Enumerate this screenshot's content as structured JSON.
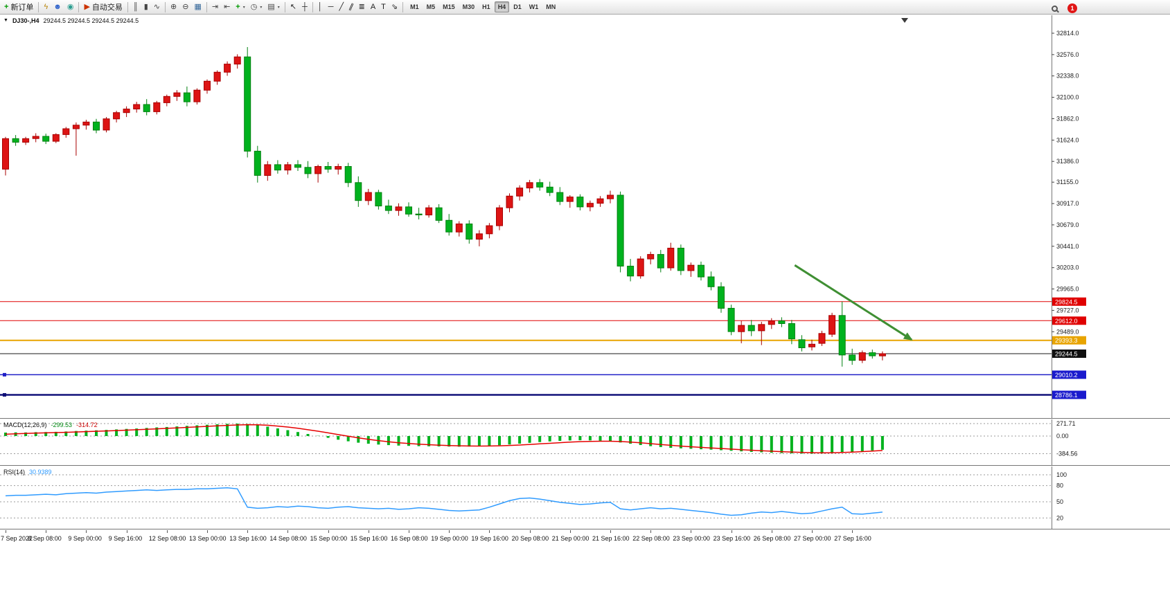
{
  "header": {
    "symbol": "DJ30-,H4",
    "ohlc": "29244.5 29244.5 29244.5 29244.5"
  },
  "toolbar": {
    "items": [
      {
        "t": "labelbtn",
        "name": "new-order-button",
        "icon": "new-order-icon",
        "glyph": "+",
        "color": "#009a00",
        "bold": true,
        "label": "新订单"
      },
      {
        "t": "sep"
      },
      {
        "t": "icon",
        "name": "quotes-button",
        "icon": "lightning-icon",
        "glyph": "ϟ",
        "color": "#b8860b"
      },
      {
        "t": "icon",
        "name": "profile-button",
        "icon": "profile-icon",
        "glyph": "☻",
        "color": "#3366cc"
      },
      {
        "t": "icon",
        "name": "community-button",
        "icon": "community-icon",
        "glyph": "◉",
        "color": "#2a9d8f"
      },
      {
        "t": "sep"
      },
      {
        "t": "labelbtn",
        "name": "autotrading-button",
        "icon": "autotrading-icon",
        "glyph": "▶",
        "color": "#cc3300",
        "label": "自动交易"
      },
      {
        "t": "sep"
      },
      {
        "t": "icon",
        "name": "bar-chart-button",
        "icon": "bar-chart-icon",
        "glyph": "║",
        "color": "#444444"
      },
      {
        "t": "icon",
        "name": "candlestick-chart-button",
        "icon": "candlestick-chart-icon",
        "glyph": "▮",
        "color": "#444444"
      },
      {
        "t": "icon",
        "name": "line-chart-button",
        "icon": "line-chart-icon",
        "glyph": "∿",
        "color": "#444444"
      },
      {
        "t": "sep"
      },
      {
        "t": "icon",
        "name": "zoom-in-button",
        "icon": "zoom-in-icon",
        "glyph": "⊕",
        "color": "#444444"
      },
      {
        "t": "icon",
        "name": "zoom-out-button",
        "icon": "zoom-out-icon",
        "glyph": "⊖",
        "color": "#444444"
      },
      {
        "t": "icon",
        "name": "tile-windows-button",
        "icon": "tile-windows-icon",
        "glyph": "▦",
        "color": "#336699"
      },
      {
        "t": "sep"
      },
      {
        "t": "icon",
        "name": "auto-scroll-button",
        "icon": "auto-scroll-icon",
        "glyph": "⇥",
        "color": "#444444"
      },
      {
        "t": "icon",
        "name": "chart-shift-button",
        "icon": "chart-shift-icon",
        "glyph": "⇤",
        "color": "#444444"
      },
      {
        "t": "icon",
        "name": "indicators-button",
        "icon": "indicators-icon",
        "glyph": "+",
        "color": "#009a00",
        "bold": true,
        "caret": true
      },
      {
        "t": "icon",
        "name": "periods-button",
        "icon": "clock-icon",
        "glyph": "◷",
        "color": "#444444",
        "caret": true
      },
      {
        "t": "icon",
        "name": "templates-button",
        "icon": "template-icon",
        "glyph": "▤",
        "color": "#444444",
        "caret": true
      },
      {
        "t": "sep"
      },
      {
        "t": "icon",
        "name": "cursor-button",
        "icon": "cursor-icon",
        "glyph": "↖",
        "color": "#222222"
      },
      {
        "t": "icon",
        "name": "crosshair-button",
        "icon": "crosshair-icon",
        "glyph": "┼",
        "color": "#222222"
      },
      {
        "t": "sep"
      },
      {
        "t": "icon",
        "name": "vertical-line-button",
        "icon": "vertical-line-icon",
        "glyph": "│",
        "color": "#222222"
      },
      {
        "t": "icon",
        "name": "horizontal-line-button",
        "icon": "horizontal-line-icon",
        "glyph": "─",
        "color": "#222222"
      },
      {
        "t": "icon",
        "name": "trendline-button",
        "icon": "trendline-icon",
        "glyph": "╱",
        "color": "#222222"
      },
      {
        "t": "icon",
        "name": "equidistant-channel-button",
        "icon": "equidistant-channel-icon",
        "glyph": "∥",
        "color": "#222222",
        "rotate": true
      },
      {
        "t": "icon",
        "name": "fibonacci-button",
        "icon": "fibonacci-icon",
        "glyph": "≣",
        "color": "#222222"
      },
      {
        "t": "icon",
        "name": "text-button",
        "icon": "text-icon",
        "glyph": "A",
        "color": "#222222"
      },
      {
        "t": "icon",
        "name": "text-label-button",
        "icon": "text-label-icon",
        "glyph": "T",
        "color": "#222222"
      },
      {
        "t": "icon",
        "name": "arrows-button",
        "icon": "arrows-icon",
        "glyph": "⇘",
        "color": "#222222"
      },
      {
        "t": "sep"
      },
      {
        "t": "tf"
      }
    ],
    "timeframes": [
      "M1",
      "M5",
      "M15",
      "M30",
      "H1",
      "H4",
      "D1",
      "W1",
      "MN"
    ],
    "active_timeframe": "H4",
    "notification_count": "1"
  },
  "colors": {
    "bull_candle": "#dd1414",
    "bull_border": "#a80000",
    "bear_candle": "#00b21e",
    "bear_border": "#00800f",
    "macd_histogram": "#00b21e",
    "macd_signal": "#e60000",
    "rsi_line": "#2f9bff",
    "arrow": "#3f8f33",
    "axis_text": "#1a1a1a",
    "panel_border": "#767676"
  },
  "chart_data": [
    {
      "type": "candlestick",
      "symbol": "DJ30-",
      "timeframe": "H4",
      "y_axis_ticks": [
        "32814.0",
        "32576.0",
        "32338.0",
        "32100.0",
        "31862.0",
        "31624.0",
        "31386.0",
        "31155.0",
        "30917.0",
        "30679.0",
        "30441.0",
        "30203.0",
        "29965.0",
        "29727.0",
        "29489.0"
      ],
      "current_price": 29244.5,
      "candles": [
        [
          31300,
          31660,
          31230,
          31640
        ],
        [
          31640,
          31680,
          31560,
          31600
        ],
        [
          31600,
          31660,
          31570,
          31640
        ],
        [
          31640,
          31700,
          31600,
          31665
        ],
        [
          31665,
          31695,
          31580,
          31610
        ],
        [
          31610,
          31700,
          31590,
          31685
        ],
        [
          31685,
          31770,
          31650,
          31750
        ],
        [
          31750,
          31820,
          31450,
          31790
        ],
        [
          31790,
          31850,
          31740,
          31825
        ],
        [
          31825,
          31860,
          31700,
          31735
        ],
        [
          31735,
          31880,
          31710,
          31860
        ],
        [
          31860,
          31950,
          31820,
          31930
        ],
        [
          31930,
          32000,
          31880,
          31970
        ],
        [
          31970,
          32050,
          31930,
          32020
        ],
        [
          32020,
          32080,
          31900,
          31940
        ],
        [
          31940,
          32060,
          31910,
          32040
        ],
        [
          32040,
          32130,
          32000,
          32110
        ],
        [
          32110,
          32180,
          32060,
          32150
        ],
        [
          32150,
          32220,
          32000,
          32050
        ],
        [
          32050,
          32200,
          32020,
          32180
        ],
        [
          32180,
          32300,
          32140,
          32280
        ],
        [
          32280,
          32400,
          32240,
          32380
        ],
        [
          32380,
          32500,
          32340,
          32470
        ],
        [
          32470,
          32580,
          32420,
          32550
        ],
        [
          32550,
          32660,
          31430,
          31500
        ],
        [
          31500,
          31560,
          31150,
          31230
        ],
        [
          31230,
          31390,
          31170,
          31350
        ],
        [
          31350,
          31400,
          31250,
          31290
        ],
        [
          31290,
          31380,
          31240,
          31350
        ],
        [
          31350,
          31400,
          31280,
          31320
        ],
        [
          31320,
          31390,
          31200,
          31250
        ],
        [
          31250,
          31350,
          31150,
          31330
        ],
        [
          31330,
          31380,
          31260,
          31300
        ],
        [
          31300,
          31360,
          31240,
          31330
        ],
        [
          31330,
          31370,
          31100,
          31150
        ],
        [
          31150,
          31220,
          30880,
          30950
        ],
        [
          30950,
          31080,
          30900,
          31040
        ],
        [
          31040,
          31070,
          30850,
          30890
        ],
        [
          30890,
          30960,
          30800,
          30840
        ],
        [
          30840,
          30920,
          30780,
          30880
        ],
        [
          30880,
          30930,
          30770,
          30800
        ],
        [
          30800,
          30870,
          30740,
          30790
        ],
        [
          30790,
          30900,
          30760,
          30870
        ],
        [
          30870,
          30910,
          30700,
          30730
        ],
        [
          30730,
          30800,
          30560,
          30600
        ],
        [
          30600,
          30720,
          30550,
          30690
        ],
        [
          30690,
          30730,
          30470,
          30520
        ],
        [
          30520,
          30620,
          30440,
          30580
        ],
        [
          30580,
          30700,
          30530,
          30670
        ],
        [
          30670,
          30900,
          30620,
          30870
        ],
        [
          30870,
          31030,
          30820,
          31000
        ],
        [
          31000,
          31120,
          30950,
          31090
        ],
        [
          31090,
          31180,
          31040,
          31150
        ],
        [
          31150,
          31190,
          31060,
          31100
        ],
        [
          31100,
          31160,
          31000,
          31040
        ],
        [
          31040,
          31100,
          30900,
          30940
        ],
        [
          30940,
          31010,
          30870,
          30990
        ],
        [
          30990,
          31020,
          30840,
          30880
        ],
        [
          30880,
          30950,
          30830,
          30920
        ],
        [
          30920,
          31000,
          30880,
          30970
        ],
        [
          30970,
          31060,
          30920,
          31010
        ],
        [
          31010,
          31050,
          30150,
          30220
        ],
        [
          30220,
          30300,
          30050,
          30110
        ],
        [
          30110,
          30330,
          30080,
          30300
        ],
        [
          30300,
          30380,
          30240,
          30350
        ],
        [
          30350,
          30400,
          30150,
          30200
        ],
        [
          30200,
          30480,
          30170,
          30420
        ],
        [
          30420,
          30460,
          30120,
          30170
        ],
        [
          30170,
          30260,
          30100,
          30230
        ],
        [
          30230,
          30270,
          30060,
          30100
        ],
        [
          30100,
          30160,
          29950,
          29990
        ],
        [
          29990,
          30040,
          29700,
          29750
        ],
        [
          29750,
          29790,
          29450,
          29490
        ],
        [
          29490,
          29610,
          29360,
          29560
        ],
        [
          29560,
          29620,
          29440,
          29500
        ],
        [
          29500,
          29600,
          29340,
          29570
        ],
        [
          29570,
          29640,
          29520,
          29610
        ],
        [
          29610,
          29650,
          29540,
          29580
        ],
        [
          29580,
          29620,
          29350,
          29410
        ],
        [
          29400,
          29450,
          29270,
          29310
        ],
        [
          29320,
          29400,
          29280,
          29350
        ],
        [
          29360,
          29500,
          29330,
          29470
        ],
        [
          29460,
          29700,
          29430,
          29670
        ],
        [
          29670,
          29825,
          29100,
          29230
        ],
        [
          29230,
          29300,
          29120,
          29170
        ],
        [
          29170,
          29280,
          29140,
          29255
        ],
        [
          29255,
          29290,
          29190,
          29220
        ],
        [
          29220,
          29270,
          29170,
          29244.5
        ]
      ],
      "hlines": [
        {
          "price": 29824.5,
          "color": "#e00000",
          "width": 1
        },
        {
          "price": 29612.0,
          "color": "#e00000",
          "width": 1
        },
        {
          "price": 29393.3,
          "color": "#e8a400",
          "width": 2
        },
        {
          "price": 29244.5,
          "color": "#1a1a1a",
          "width": 1
        },
        {
          "price": 29010.2,
          "color": "#2020c8",
          "width": 1.5,
          "handles": true
        },
        {
          "price": 28786.1,
          "color": "#101078",
          "width": 2.5,
          "handles": true
        }
      ],
      "badges": [
        {
          "price": 29824.5,
          "text": "29824.5",
          "color": "#e00000"
        },
        {
          "price": 29612.0,
          "text": "29612.0",
          "color": "#e00000"
        },
        {
          "price": 29393.3,
          "text": "29393.3",
          "color": "#e8a400"
        },
        {
          "price": 29244.5,
          "text": "29244.5",
          "color": "#101010"
        },
        {
          "price": 29010.2,
          "text": "29010.2",
          "color": "#1a1acd"
        },
        {
          "price": 28786.1,
          "text": "28786.1",
          "color": "#1a1acd"
        }
      ],
      "trend_arrow": {
        "from_bar": 78.3,
        "from_price": 30230,
        "to_bar": 89.9,
        "to_price": 29400
      }
    },
    {
      "type": "bar",
      "title": "MACD(12,26,9)",
      "value_main": "-299.53",
      "value_signal": "-314.72",
      "levels": [
        {
          "value": 271.71,
          "label": "271.71"
        },
        {
          "value": 0,
          "label": "0.00"
        },
        {
          "value": -384.56,
          "label": "-384.56"
        }
      ],
      "bars": [
        75,
        80,
        78,
        85,
        88,
        92,
        100,
        110,
        118,
        126,
        135,
        145,
        155,
        165,
        176,
        188,
        198,
        210,
        222,
        234,
        246,
        256,
        265,
        271.71,
        262,
        238,
        205,
        168,
        128,
        88,
        45,
        5,
        -40,
        -80,
        -115,
        -145,
        -168,
        -185,
        -198,
        -208,
        -215,
        -220,
        -224,
        -227,
        -230,
        -232,
        -230,
        -224,
        -214,
        -200,
        -184,
        -166,
        -148,
        -132,
        -118,
        -106,
        -97,
        -92,
        -95,
        -103,
        -116,
        -140,
        -168,
        -196,
        -220,
        -240,
        -256,
        -268,
        -278,
        -288,
        -298,
        -310,
        -322,
        -334,
        -345,
        -355,
        -364,
        -371,
        -377,
        -382,
        -384.56,
        -381,
        -373,
        -362,
        -348,
        -332,
        -315,
        -299.53
      ],
      "signal": [
        40,
        50,
        57,
        64,
        70,
        76,
        82,
        89,
        96,
        104,
        112,
        120,
        129,
        138,
        147,
        157,
        167,
        178,
        189,
        200,
        211,
        222,
        233,
        242,
        247,
        245,
        235,
        218,
        196,
        169,
        138,
        105,
        69,
        32,
        -5,
        -40,
        -72,
        -100,
        -125,
        -146,
        -163,
        -177,
        -189,
        -199,
        -207,
        -213,
        -217,
        -219,
        -218,
        -213,
        -206,
        -196,
        -184,
        -171,
        -158,
        -145,
        -133,
        -123,
        -116,
        -113,
        -113,
        -120,
        -132,
        -148,
        -166,
        -184,
        -202,
        -219,
        -234,
        -247,
        -260,
        -272,
        -285,
        -297,
        -309,
        -320,
        -331,
        -341,
        -348,
        -356,
        -362,
        -365,
        -364,
        -359,
        -350,
        -339,
        -327,
        -314.72
      ]
    },
    {
      "type": "line",
      "title": "RSI(14)",
      "value": "30.9389",
      "levels": [
        {
          "value": 100,
          "label": "100"
        },
        {
          "value": 80,
          "label": "80"
        },
        {
          "value": 50,
          "label": "50"
        },
        {
          "value": 20,
          "label": "20"
        }
      ],
      "values": [
        61,
        62,
        62,
        63,
        64,
        63,
        65,
        66,
        67,
        66,
        68,
        69,
        70,
        71,
        72,
        71,
        72,
        73,
        73,
        74,
        74,
        75,
        76,
        74,
        40,
        38,
        39,
        41,
        40,
        42,
        41,
        39,
        38,
        40,
        41,
        39,
        38,
        37,
        38,
        36,
        37,
        39,
        38,
        36,
        34,
        33,
        34,
        35,
        40,
        46,
        52,
        56,
        57,
        55,
        52,
        49,
        47,
        45,
        46,
        48,
        49,
        37,
        35,
        37,
        39,
        37,
        38,
        36,
        34,
        32,
        30,
        27,
        25,
        26,
        29,
        31,
        30,
        32,
        30,
        28,
        29,
        33,
        37,
        40,
        28,
        27,
        29,
        30.94
      ]
    }
  ],
  "time_axis": {
    "labels": [
      "7 Sep 2022",
      "8 Sep 08:00",
      "9 Sep 00:00",
      "9 Sep 16:00",
      "12 Sep 08:00",
      "13 Sep 00:00",
      "13 Sep 16:00",
      "14 Sep 08:00",
      "15 Sep 00:00",
      "15 Sep 16:00",
      "16 Sep 08:00",
      "19 Sep 00:00",
      "19 Sep 16:00",
      "20 Sep 08:00",
      "21 Sep 00:00",
      "21 Sep 16:00",
      "22 Sep 08:00",
      "23 Sep 00:00",
      "23 Sep 16:00",
      "26 Sep 08:00",
      "27 Sep 00:00",
      "27 Sep 16:00"
    ],
    "every_n_bars": 4
  }
}
